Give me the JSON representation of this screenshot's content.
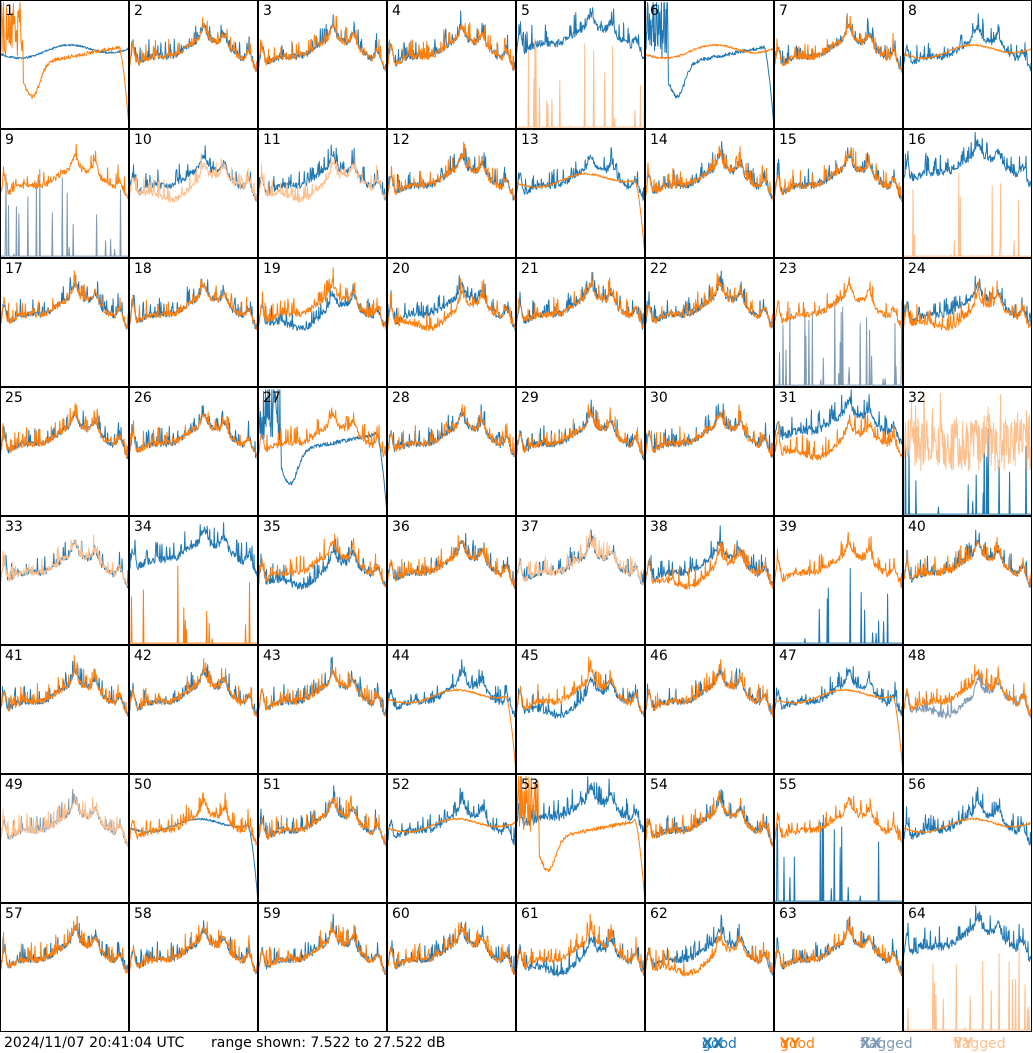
{
  "footer": {
    "timestamp": "2024/11/07 20:41:04 UTC",
    "range_text": "range shown: 7.522 to 27.522 dB"
  },
  "legend": {
    "good_xx": {
      "text": "good",
      "pol": "XX",
      "color": "#1f77b4"
    },
    "good_yy": {
      "text": "good",
      "pol": "YY",
      "color": "#ff7f0e"
    },
    "flagged_xx": {
      "text": "flagged",
      "pol": "XX",
      "color": "#7f9ab4"
    },
    "flagged_yy": {
      "text": "flagged",
      "pol": "YY",
      "color": "#ffbf8c"
    }
  },
  "chart_data": {
    "type": "line",
    "ylim": [
      7.522,
      27.522
    ],
    "panels": [
      {
        "label": "1",
        "xx": "good",
        "yy": "good",
        "xx_shape": "smooth",
        "yy_shape": "dip",
        "drop": "yy"
      },
      {
        "label": "2",
        "xx": "good",
        "yy": "good",
        "xx_shape": "normal",
        "yy_shape": "normal"
      },
      {
        "label": "3",
        "xx": "good",
        "yy": "good",
        "xx_shape": "normal",
        "yy_shape": "normal"
      },
      {
        "label": "4",
        "xx": "good",
        "yy": "good",
        "xx_shape": "normal",
        "yy_shape": "normal"
      },
      {
        "label": "5",
        "xx": "good",
        "yy": "flagged",
        "xx_shape": "high",
        "yy_shape": "spikes"
      },
      {
        "label": "6",
        "xx": "good",
        "yy": "good",
        "xx_shape": "dip",
        "yy_shape": "smooth",
        "drop": "xx"
      },
      {
        "label": "7",
        "xx": "good",
        "yy": "good",
        "xx_shape": "normal",
        "yy_shape": "normal"
      },
      {
        "label": "8",
        "xx": "good",
        "yy": "good",
        "xx_shape": "normal",
        "yy_shape": "smooth"
      },
      {
        "label": "9",
        "xx": "flagged",
        "yy": "good",
        "xx_shape": "spikes",
        "yy_shape": "normal"
      },
      {
        "label": "10",
        "xx": "good",
        "yy": "flagged",
        "xx_shape": "normal",
        "yy_shape": "low"
      },
      {
        "label": "11",
        "xx": "good",
        "yy": "flagged",
        "xx_shape": "normal",
        "yy_shape": "low"
      },
      {
        "label": "12",
        "xx": "good",
        "yy": "good",
        "xx_shape": "normal",
        "yy_shape": "normal"
      },
      {
        "label": "13",
        "xx": "good",
        "yy": "good",
        "xx_shape": "normal",
        "yy_shape": "smooth",
        "drop": "yy"
      },
      {
        "label": "14",
        "xx": "good",
        "yy": "good",
        "xx_shape": "normal",
        "yy_shape": "normal"
      },
      {
        "label": "15",
        "xx": "good",
        "yy": "good",
        "xx_shape": "normal",
        "yy_shape": "normal"
      },
      {
        "label": "16",
        "xx": "good",
        "yy": "flagged",
        "xx_shape": "high",
        "yy_shape": "spikes"
      },
      {
        "label": "17",
        "xx": "good",
        "yy": "good",
        "xx_shape": "normal",
        "yy_shape": "normal"
      },
      {
        "label": "18",
        "xx": "good",
        "yy": "good",
        "xx_shape": "normal",
        "yy_shape": "normal"
      },
      {
        "label": "19",
        "xx": "good",
        "yy": "good",
        "xx_shape": "low",
        "yy_shape": "normal"
      },
      {
        "label": "20",
        "xx": "good",
        "yy": "good",
        "xx_shape": "normal",
        "yy_shape": "low"
      },
      {
        "label": "21",
        "xx": "good",
        "yy": "good",
        "xx_shape": "normal",
        "yy_shape": "normal"
      },
      {
        "label": "22",
        "xx": "good",
        "yy": "good",
        "xx_shape": "normal",
        "yy_shape": "normal"
      },
      {
        "label": "23",
        "xx": "flagged",
        "yy": "good",
        "xx_shape": "spikes",
        "yy_shape": "normal"
      },
      {
        "label": "24",
        "xx": "good",
        "yy": "good",
        "xx_shape": "normal",
        "yy_shape": "low"
      },
      {
        "label": "25",
        "xx": "good",
        "yy": "good",
        "xx_shape": "normal",
        "yy_shape": "normal"
      },
      {
        "label": "26",
        "xx": "good",
        "yy": "good",
        "xx_shape": "normal",
        "yy_shape": "normal"
      },
      {
        "label": "27",
        "xx": "good",
        "yy": "good",
        "xx_shape": "dip",
        "yy_shape": "normal",
        "drop": "xx"
      },
      {
        "label": "28",
        "xx": "good",
        "yy": "good",
        "xx_shape": "normal",
        "yy_shape": "normal"
      },
      {
        "label": "29",
        "xx": "good",
        "yy": "good",
        "xx_shape": "normal",
        "yy_shape": "normal"
      },
      {
        "label": "30",
        "xx": "good",
        "yy": "good",
        "xx_shape": "normal",
        "yy_shape": "normal"
      },
      {
        "label": "31",
        "xx": "good",
        "yy": "good",
        "xx_shape": "high",
        "yy_shape": "low"
      },
      {
        "label": "32",
        "xx": "good",
        "yy": "flagged",
        "xx_shape": "spikes",
        "yy_shape": "wild"
      },
      {
        "label": "33",
        "xx": "good",
        "yy": "flagged",
        "xx_shape": "normal",
        "yy_shape": "normal"
      },
      {
        "label": "34",
        "xx": "good",
        "yy": "good",
        "xx_shape": "high",
        "yy_shape": "spikes"
      },
      {
        "label": "35",
        "xx": "good",
        "yy": "good",
        "xx_shape": "low",
        "yy_shape": "normal"
      },
      {
        "label": "36",
        "xx": "good",
        "yy": "good",
        "xx_shape": "normal",
        "yy_shape": "normal"
      },
      {
        "label": "37",
        "xx": "good",
        "yy": "flagged",
        "xx_shape": "normal",
        "yy_shape": "normal"
      },
      {
        "label": "38",
        "xx": "good",
        "yy": "good",
        "xx_shape": "normal",
        "yy_shape": "low"
      },
      {
        "label": "39",
        "xx": "good",
        "yy": "good",
        "xx_shape": "spikes",
        "yy_shape": "normal"
      },
      {
        "label": "40",
        "xx": "good",
        "yy": "good",
        "xx_shape": "normal",
        "yy_shape": "normal"
      },
      {
        "label": "41",
        "xx": "good",
        "yy": "good",
        "xx_shape": "normal",
        "yy_shape": "normal"
      },
      {
        "label": "42",
        "xx": "good",
        "yy": "good",
        "xx_shape": "normal",
        "yy_shape": "normal"
      },
      {
        "label": "43",
        "xx": "good",
        "yy": "good",
        "xx_shape": "normal",
        "yy_shape": "normal"
      },
      {
        "label": "44",
        "xx": "good",
        "yy": "good",
        "xx_shape": "normal",
        "yy_shape": "smooth",
        "drop": "yy"
      },
      {
        "label": "45",
        "xx": "good",
        "yy": "good",
        "xx_shape": "low",
        "yy_shape": "normal"
      },
      {
        "label": "46",
        "xx": "good",
        "yy": "good",
        "xx_shape": "normal",
        "yy_shape": "normal"
      },
      {
        "label": "47",
        "xx": "good",
        "yy": "good",
        "xx_shape": "normal",
        "yy_shape": "smooth",
        "drop": "yy"
      },
      {
        "label": "48",
        "xx": "flagged",
        "yy": "good",
        "xx_shape": "low",
        "yy_shape": "normal"
      },
      {
        "label": "49",
        "xx": "flagged",
        "yy": "flagged",
        "xx_shape": "normal",
        "yy_shape": "normal"
      },
      {
        "label": "50",
        "xx": "good",
        "yy": "good",
        "xx_shape": "smooth",
        "yy_shape": "normal",
        "drop": "xx"
      },
      {
        "label": "51",
        "xx": "good",
        "yy": "good",
        "xx_shape": "normal",
        "yy_shape": "normal"
      },
      {
        "label": "52",
        "xx": "good",
        "yy": "good",
        "xx_shape": "normal",
        "yy_shape": "smooth"
      },
      {
        "label": "53",
        "xx": "good",
        "yy": "good",
        "xx_shape": "high",
        "yy_shape": "dip",
        "drop": "yy"
      },
      {
        "label": "54",
        "xx": "good",
        "yy": "good",
        "xx_shape": "normal",
        "yy_shape": "normal"
      },
      {
        "label": "55",
        "xx": "good",
        "yy": "good",
        "xx_shape": "spikes",
        "yy_shape": "normal"
      },
      {
        "label": "56",
        "xx": "good",
        "yy": "good",
        "xx_shape": "normal",
        "yy_shape": "smooth"
      },
      {
        "label": "57",
        "xx": "good",
        "yy": "good",
        "xx_shape": "normal",
        "yy_shape": "normal"
      },
      {
        "label": "58",
        "xx": "good",
        "yy": "good",
        "xx_shape": "normal",
        "yy_shape": "normal"
      },
      {
        "label": "59",
        "xx": "good",
        "yy": "good",
        "xx_shape": "normal",
        "yy_shape": "normal"
      },
      {
        "label": "60",
        "xx": "good",
        "yy": "good",
        "xx_shape": "normal",
        "yy_shape": "normal"
      },
      {
        "label": "61",
        "xx": "good",
        "yy": "good",
        "xx_shape": "low",
        "yy_shape": "normal"
      },
      {
        "label": "62",
        "xx": "good",
        "yy": "good",
        "xx_shape": "normal",
        "yy_shape": "low"
      },
      {
        "label": "63",
        "xx": "good",
        "yy": "good",
        "xx_shape": "normal",
        "yy_shape": "normal"
      },
      {
        "label": "64",
        "xx": "good",
        "yy": "flagged",
        "xx_shape": "high",
        "yy_shape": "spikes"
      }
    ]
  }
}
